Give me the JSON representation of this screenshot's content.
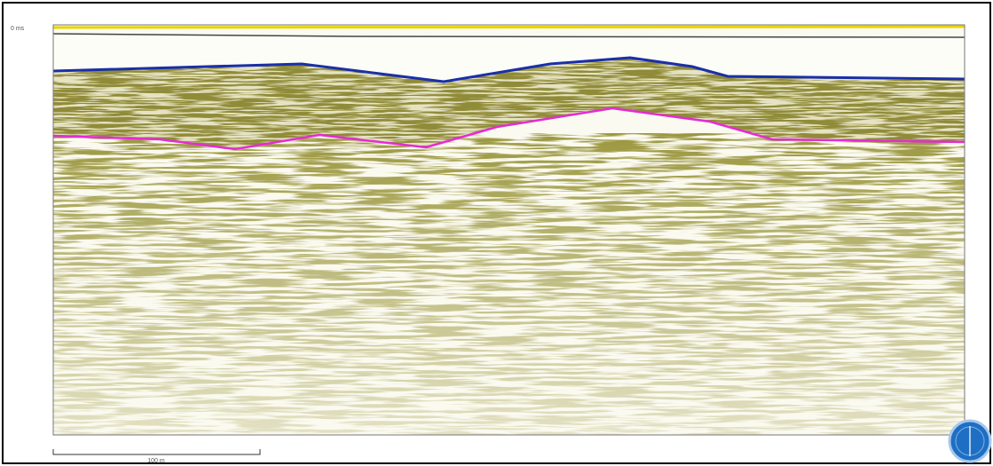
{
  "labels": {
    "time_origin": "0 ms",
    "scale_bar": "100 m"
  }
}
